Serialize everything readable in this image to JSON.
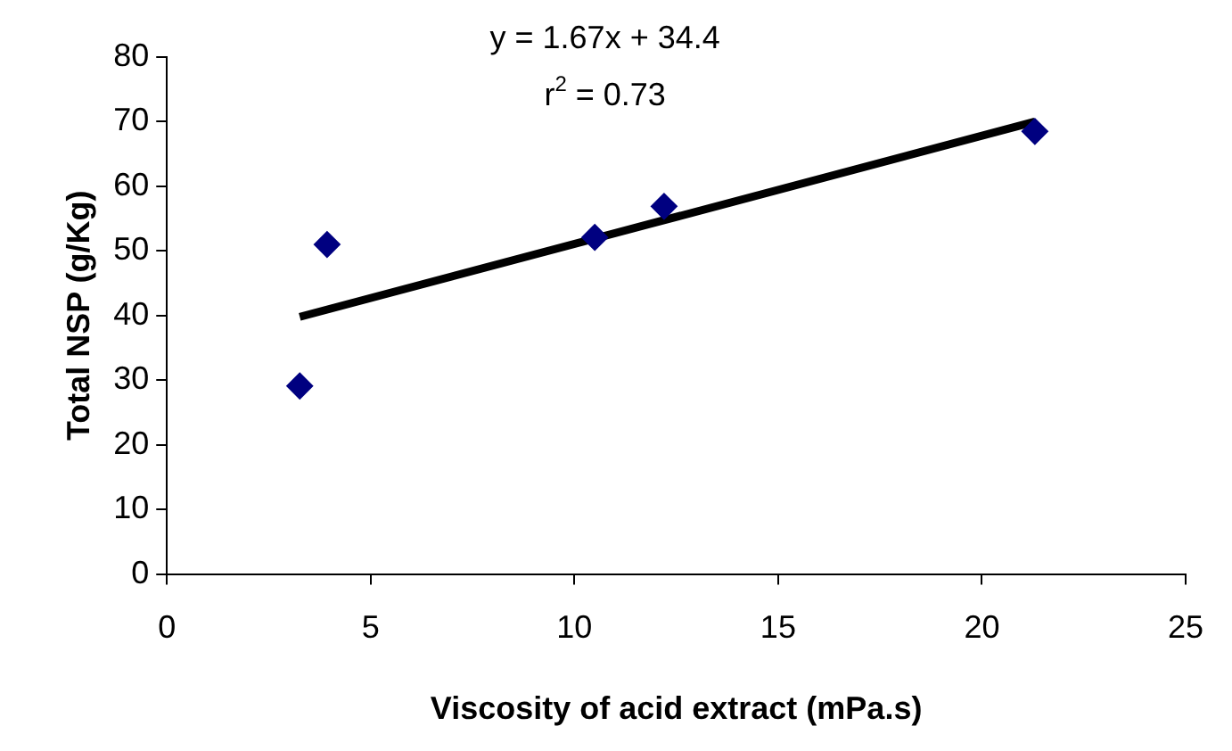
{
  "chart_data": {
    "type": "scatter",
    "xlabel": "Viscosity of acid extract (mPa.s)",
    "ylabel": "Total NSP (g/Kg)",
    "annotations": [
      "y = 1.67x + 34.4",
      "r$^{2}$ = 0.73"
    ],
    "xlim": [
      0,
      25
    ],
    "xticks": [
      0,
      5,
      10,
      15,
      20,
      25
    ],
    "ylim": [
      0,
      80
    ],
    "yticks": [
      0,
      10,
      20,
      30,
      40,
      50,
      60,
      70,
      80
    ],
    "grid": false,
    "legend": false,
    "series": [
      {
        "type": "scatter",
        "marker": "diamond",
        "color": "#000080",
        "x": [
          3.26,
          3.93,
          10.5,
          12.2,
          21.3
        ],
        "values": [
          29.1,
          51.0,
          52.1,
          56.9,
          68.5
        ]
      },
      {
        "type": "line",
        "marker": "none",
        "color": "#000000",
        "x": [
          3.26,
          21.3
        ],
        "values": [
          39.8,
          70.0
        ]
      }
    ]
  }
}
